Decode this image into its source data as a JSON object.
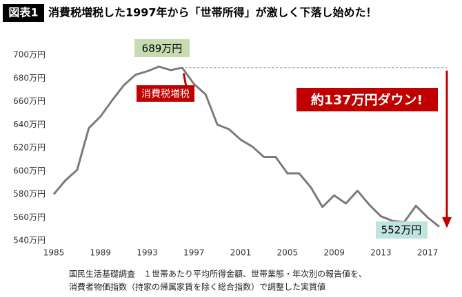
{
  "chart_data": {
    "type": "line",
    "label": "図表1",
    "title": "消費税増税した1997年から「世帯所得」が激しく下落し始めた！",
    "x": [
      1985,
      1986,
      1987,
      1988,
      1989,
      1990,
      1991,
      1992,
      1993,
      1994,
      1995,
      1996,
      1997,
      1998,
      1999,
      2000,
      2001,
      2002,
      2003,
      2004,
      2005,
      2006,
      2007,
      2008,
      2009,
      2010,
      2011,
      2012,
      2013,
      2014,
      2015,
      2016,
      2017,
      2018
    ],
    "series": [
      {
        "name": "世帯所得",
        "color": "#7a7a7a",
        "values": [
          580,
          592,
          601,
          637,
          647,
          661,
          674,
          683,
          686,
          690,
          687,
          689,
          675,
          666,
          640,
          636,
          627,
          621,
          612,
          612,
          598,
          598,
          586,
          569,
          579,
          572,
          583,
          571,
          561,
          557,
          556,
          570,
          560,
          552
        ]
      }
    ],
    "xlim": [
      1985,
      2019
    ],
    "xticks": [
      1985,
      1989,
      1993,
      1997,
      2001,
      2005,
      2009,
      2013,
      2017
    ],
    "ylim": [
      540,
      700
    ],
    "yticks": [
      {
        "value": 540,
        "label": "540万円"
      },
      {
        "value": 560,
        "label": "560万円"
      },
      {
        "value": 580,
        "label": "580万円"
      },
      {
        "value": 600,
        "label": "600万円"
      },
      {
        "value": 620,
        "label": "620万円"
      },
      {
        "value": 640,
        "label": "640万円"
      },
      {
        "value": 660,
        "label": "660万円"
      },
      {
        "value": 680,
        "label": "680万円"
      },
      {
        "value": 700,
        "label": "700万円"
      }
    ],
    "grid": false,
    "annotations": {
      "peak": "689万円",
      "tax": "消費税増税",
      "drop": "約137万円ダウン!",
      "last": "552万円"
    },
    "note": [
      "国民生活基礎調査　１世帯あたり平均所得金額、世帯業態・年次別の報告値を、",
      "消費者物価指数（持家の帰属家賃を除く総合指数）で調整した実質値"
    ]
  }
}
